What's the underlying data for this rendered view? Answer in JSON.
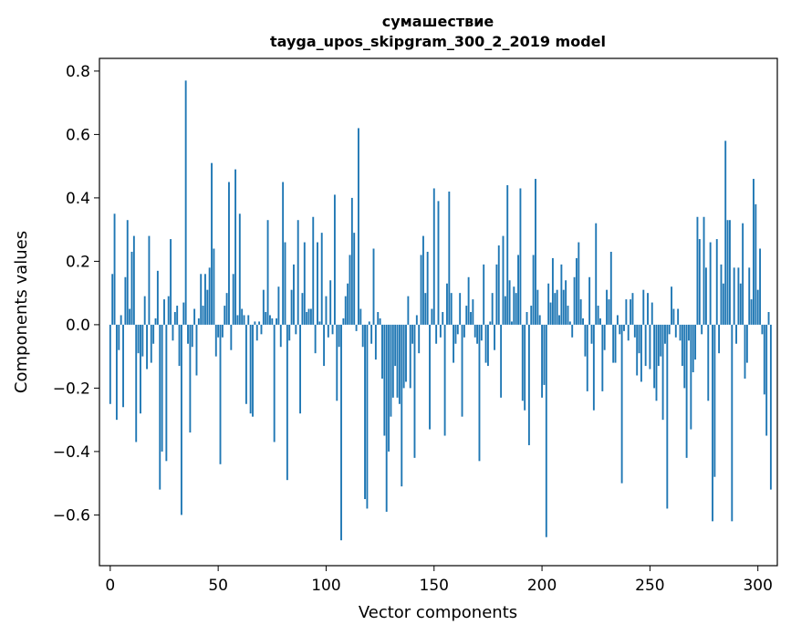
{
  "chart_data": {
    "type": "bar",
    "title": "сумашествие",
    "subtitle": "tayga_upos_skipgram_300_2_2019 model",
    "xlabel": "Vector components",
    "ylabel": "Components values",
    "xlim": [
      -5,
      309
    ],
    "ylim": [
      -0.76,
      0.84
    ],
    "xticks": [
      0,
      50,
      100,
      150,
      200,
      250,
      300
    ],
    "xtick_labels": [
      "0",
      "50",
      "100",
      "150",
      "200",
      "250",
      "300"
    ],
    "yticks": [
      -0.6,
      -0.4,
      -0.2,
      0.0,
      0.2,
      0.4,
      0.6,
      0.8
    ],
    "ytick_labels": [
      "−0.6",
      "−0.4",
      "−0.2",
      "0.0",
      "0.2",
      "0.4",
      "0.6",
      "0.8"
    ],
    "bar_color": "#1f77b4",
    "grid": false,
    "series": [
      {
        "name": "components",
        "values": [
          -0.25,
          0.16,
          0.35,
          -0.3,
          -0.08,
          0.03,
          -0.26,
          0.15,
          0.33,
          0.05,
          0.23,
          0.28,
          -0.37,
          -0.09,
          -0.28,
          -0.1,
          0.09,
          -0.14,
          0.28,
          -0.12,
          -0.06,
          0.02,
          0.17,
          -0.52,
          -0.4,
          0.08,
          -0.43,
          0.09,
          0.27,
          -0.05,
          0.04,
          0.06,
          -0.13,
          -0.6,
          0.07,
          0.77,
          -0.06,
          -0.34,
          -0.07,
          0.05,
          -0.16,
          0.02,
          0.16,
          0.06,
          0.16,
          0.11,
          0.18,
          0.51,
          0.24,
          -0.1,
          -0.04,
          -0.44,
          -0.04,
          0.06,
          0.1,
          0.45,
          -0.08,
          0.16,
          0.49,
          0.03,
          0.35,
          0.05,
          0.03,
          -0.25,
          0.03,
          -0.28,
          -0.29,
          0.01,
          -0.05,
          0.01,
          -0.03,
          0.11,
          0.04,
          0.33,
          0.03,
          0.02,
          -0.37,
          0.02,
          0.12,
          -0.07,
          0.45,
          0.26,
          -0.49,
          -0.05,
          0.11,
          0.19,
          -0.03,
          0.33,
          -0.28,
          0.1,
          0.26,
          0.04,
          0.05,
          0.05,
          0.34,
          -0.09,
          0.26,
          0.01,
          0.29,
          -0.13,
          0.09,
          -0.04,
          0.14,
          -0.03,
          0.41,
          -0.24,
          -0.07,
          -0.68,
          0.02,
          0.09,
          0.13,
          0.22,
          0.4,
          0.29,
          -0.02,
          0.62,
          0.05,
          -0.07,
          -0.55,
          -0.58,
          0.01,
          -0.06,
          0.24,
          -0.11,
          0.04,
          0.02,
          -0.17,
          -0.35,
          -0.59,
          -0.4,
          -0.29,
          -0.23,
          -0.13,
          -0.23,
          -0.25,
          -0.51,
          -0.2,
          -0.18,
          0.09,
          -0.2,
          -0.06,
          -0.42,
          0.03,
          -0.09,
          0.22,
          0.28,
          0.1,
          0.23,
          -0.33,
          0.05,
          0.43,
          -0.06,
          0.39,
          -0.04,
          0.04,
          -0.35,
          0.13,
          0.42,
          0.1,
          -0.12,
          -0.06,
          -0.03,
          0.1,
          -0.29,
          -0.04,
          0.06,
          0.15,
          0.04,
          0.08,
          -0.04,
          -0.06,
          -0.43,
          -0.05,
          0.19,
          -0.12,
          -0.13,
          0.01,
          0.1,
          -0.08,
          0.19,
          0.25,
          -0.23,
          0.28,
          0.09,
          0.44,
          0.14,
          0.01,
          0.12,
          0.1,
          0.22,
          0.43,
          -0.24,
          -0.27,
          0.04,
          -0.38,
          0.06,
          0.22,
          0.46,
          0.11,
          0.03,
          -0.23,
          -0.19,
          -0.67,
          0.13,
          0.07,
          0.21,
          0.1,
          0.11,
          0.03,
          0.19,
          0.11,
          0.14,
          0.06,
          0.01,
          -0.04,
          0.15,
          0.21,
          0.26,
          0.08,
          0.02,
          -0.1,
          -0.21,
          0.15,
          -0.06,
          -0.27,
          0.32,
          0.06,
          0.02,
          -0.21,
          -0.08,
          0.11,
          0.08,
          0.23,
          -0.12,
          -0.12,
          0.03,
          -0.03,
          -0.5,
          -0.02,
          0.08,
          -0.05,
          0.08,
          0.1,
          -0.04,
          -0.16,
          -0.09,
          -0.18,
          0.11,
          -0.13,
          0.1,
          -0.14,
          0.07,
          -0.2,
          -0.24,
          -0.13,
          -0.1,
          -0.3,
          -0.06,
          -0.58,
          -0.03,
          0.12,
          0.05,
          -0.04,
          0.05,
          -0.05,
          -0.13,
          -0.2,
          -0.42,
          -0.05,
          -0.33,
          -0.15,
          -0.11,
          0.34,
          0.27,
          -0.03,
          0.34,
          0.18,
          -0.24,
          0.26,
          -0.62,
          -0.48,
          0.27,
          -0.09,
          0.19,
          0.13,
          0.58,
          0.33,
          0.33,
          -0.62,
          0.18,
          -0.06,
          0.18,
          0.13,
          0.32,
          -0.17,
          -0.12,
          0.18,
          0.08,
          0.46,
          0.38,
          0.11,
          0.24,
          -0.03,
          -0.22,
          -0.35,
          0.04,
          -0.52
        ]
      }
    ]
  }
}
